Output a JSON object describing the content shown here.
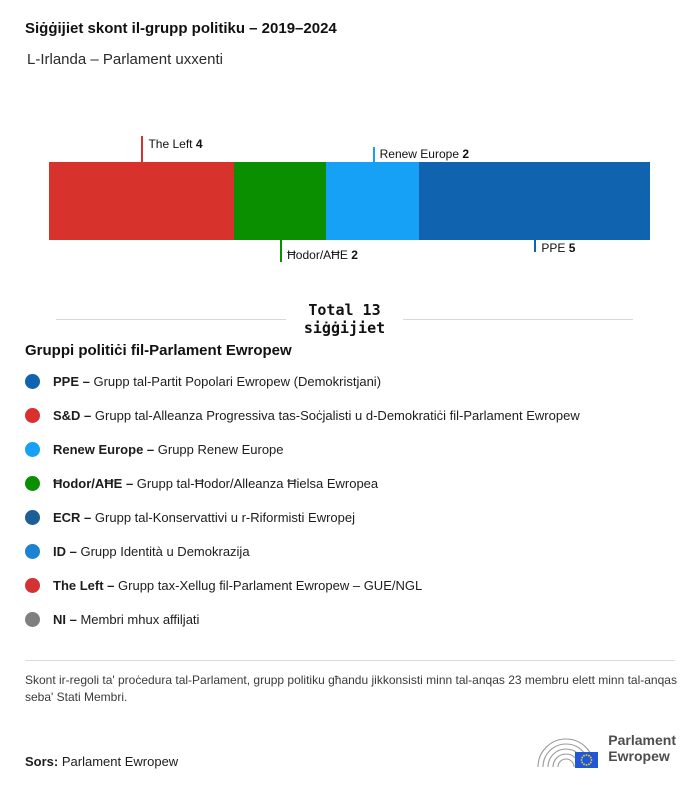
{
  "chart_data": {
    "type": "bar",
    "variant": "horizontal-stacked-seats",
    "title": "Siġġijiet skont il-grupp politiku – 2019–2024",
    "subtitle": "L-Irlanda – Parlament uxxenti",
    "total": 13,
    "total_label_line1": "Total 13",
    "total_label_line2": "siġġijiet",
    "segments": [
      {
        "name": "The Left",
        "value": 4,
        "color": "#d8322c",
        "callout": "top"
      },
      {
        "name": "Ħodor/AĦE",
        "value": 2,
        "color": "#0a8f00",
        "callout": "bottom"
      },
      {
        "name": "Renew Europe",
        "value": 2,
        "color": "#16a0f6",
        "callout": "top"
      },
      {
        "name": "PPE",
        "value": 5,
        "color": "#0f63af",
        "callout": "bottom"
      }
    ]
  },
  "legend": {
    "heading": "Gruppi politiċi fil-Parlament Ewropew",
    "items": [
      {
        "abbr": "PPE –",
        "desc": "Grupp tal-Partit Popolari Ewropew (Demokristjani)",
        "color": "#0f63af"
      },
      {
        "abbr": "S&D –",
        "desc": "Grupp tal-Alleanza Progressiva tas-Soċjalisti u d-Demokratiċi fil-Parlament Ewropew",
        "color": "#dc2f2f"
      },
      {
        "abbr": "Renew Europe –",
        "desc": "Grupp Renew Europe",
        "color": "#16a0f6"
      },
      {
        "abbr": "Ħodor/AĦE –",
        "desc": "Grupp tal-Ħodor/Alleanza Ħielsa Ewropea",
        "color": "#0a8f00"
      },
      {
        "abbr": "ECR –",
        "desc": "Grupp tal-Konservattivi u r-Riformisti Ewropej",
        "color": "#1d5e96"
      },
      {
        "abbr": "ID –",
        "desc": "Grupp Identità u Demokrazija",
        "color": "#1e82d2"
      },
      {
        "abbr": "The Left –",
        "desc": "Grupp tax-Xellug fil-Parlament Ewropew – GUE/NGL",
        "color": "#d53333"
      },
      {
        "abbr": "NI –",
        "desc": "Membri mhux affiljati",
        "color": "#7f7f7f"
      }
    ]
  },
  "footnote": "Skont ir-regoli ta' proċedura tal-Parlament, grupp politiku għandu jikkonsisti minn tal-anqas 23 membru elett minn tal-anqas seba' Stati Membri.",
  "source": {
    "label": "Sors:",
    "value": "Parlament Ewropew"
  },
  "logo": {
    "line1": "Parlament",
    "line2": "Ewropew"
  }
}
